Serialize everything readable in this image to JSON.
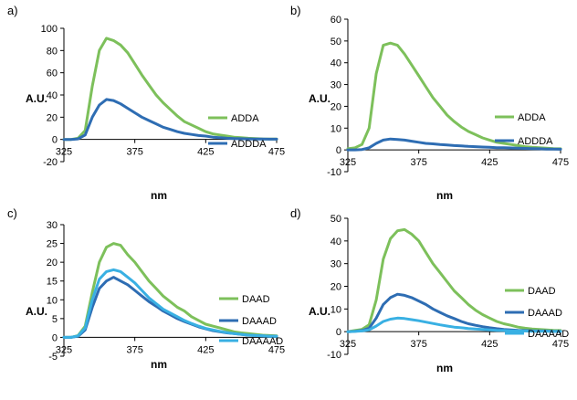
{
  "chart_data": [
    {
      "type": "line",
      "panel_label": "a)",
      "xlabel": "nm",
      "ylabel": "A.U.",
      "xlim": [
        325,
        475
      ],
      "ylim": [
        -20,
        100
      ],
      "xticks": [
        "325",
        "375",
        "425",
        "475"
      ],
      "yticks": [
        "-20",
        "0",
        "20",
        "40",
        "60",
        "80",
        "100"
      ],
      "grid": false,
      "legend_position": "right",
      "series": [
        {
          "name": "ADDA",
          "color": "#7dc05b",
          "x": [
            325,
            330,
            335,
            340,
            345,
            350,
            355,
            360,
            365,
            370,
            375,
            380,
            385,
            390,
            395,
            400,
            405,
            410,
            415,
            420,
            425,
            430,
            435,
            440,
            445,
            450,
            455,
            460,
            465,
            470,
            475
          ],
          "y": [
            0,
            0,
            1,
            8,
            48,
            80,
            91,
            89,
            85,
            78,
            68,
            58,
            49,
            40,
            33,
            27,
            21,
            16,
            13,
            10,
            7,
            5,
            4,
            3,
            2,
            1.5,
            1,
            0.8,
            0.5,
            0.4,
            0.3
          ]
        },
        {
          "name": "ADDDA",
          "color": "#2e6db3",
          "x": [
            325,
            330,
            335,
            340,
            345,
            350,
            355,
            360,
            365,
            370,
            375,
            380,
            385,
            390,
            395,
            400,
            405,
            410,
            415,
            420,
            425,
            430,
            435,
            440,
            445,
            450,
            455,
            460,
            465,
            470,
            475
          ],
          "y": [
            0,
            0,
            0.5,
            4,
            20,
            31,
            36,
            35,
            32,
            28,
            24,
            20,
            17,
            14,
            11,
            9,
            7,
            5.5,
            4.5,
            3.5,
            3,
            2,
            1.5,
            1,
            0.8,
            0.6,
            0.5,
            0.4,
            0.3,
            0.2,
            0.2
          ]
        }
      ]
    },
    {
      "type": "line",
      "panel_label": "b)",
      "xlabel": "nm",
      "ylabel": "A.U.",
      "xlim": [
        325,
        475
      ],
      "ylim": [
        -10,
        60
      ],
      "xticks": [
        "325",
        "375",
        "425",
        "475"
      ],
      "yticks": [
        "-10",
        "0",
        "10",
        "20",
        "30",
        "40",
        "50",
        "60"
      ],
      "grid": false,
      "legend_position": "right",
      "series": [
        {
          "name": "ADDA",
          "color": "#7dc05b",
          "x": [
            325,
            330,
            335,
            340,
            345,
            350,
            355,
            360,
            365,
            370,
            375,
            380,
            385,
            390,
            395,
            400,
            405,
            410,
            415,
            420,
            425,
            430,
            435,
            440,
            445,
            450,
            455,
            460,
            465,
            470,
            475
          ],
          "y": [
            0.5,
            1,
            2.5,
            10,
            35,
            48,
            49,
            48,
            44,
            39,
            34,
            29,
            24,
            20,
            16,
            13,
            10.5,
            8.5,
            7,
            5.5,
            4.5,
            3.5,
            3,
            2.5,
            2,
            1.5,
            1.2,
            1,
            0.8,
            0.6,
            0.5
          ]
        },
        {
          "name": "ADDDA",
          "color": "#2e6db3",
          "x": [
            325,
            330,
            335,
            340,
            345,
            350,
            355,
            360,
            365,
            370,
            375,
            380,
            385,
            390,
            395,
            400,
            405,
            410,
            415,
            420,
            425,
            430,
            435,
            440,
            445,
            450,
            455,
            460,
            465,
            470,
            475
          ],
          "y": [
            0,
            0,
            0.2,
            1,
            3,
            4.5,
            5,
            4.8,
            4.5,
            4,
            3.5,
            3,
            2.8,
            2.5,
            2.3,
            2,
            1.8,
            1.6,
            1.5,
            1.3,
            1.2,
            1,
            1,
            0.9,
            0.8,
            0.7,
            0.6,
            0.5,
            0.4,
            0.4,
            0.3
          ]
        }
      ]
    },
    {
      "type": "line",
      "panel_label": "c)",
      "xlabel": "nm",
      "ylabel": "A.U.",
      "xlim": [
        325,
        475
      ],
      "ylim": [
        -5,
        30
      ],
      "xticks": [
        "325",
        "375",
        "425",
        "475"
      ],
      "yticks": [
        "-5",
        "0",
        "5",
        "10",
        "15",
        "20",
        "25",
        "30"
      ],
      "grid": false,
      "legend_position": "right",
      "series": [
        {
          "name": "DAAD",
          "color": "#7dc05b",
          "x": [
            325,
            330,
            335,
            340,
            345,
            350,
            355,
            360,
            365,
            370,
            375,
            380,
            385,
            390,
            395,
            400,
            405,
            410,
            415,
            420,
            425,
            430,
            435,
            440,
            445,
            450,
            455,
            460,
            465,
            470,
            475
          ],
          "y": [
            0,
            0,
            0.5,
            3,
            12,
            20,
            24,
            25,
            24.5,
            22,
            20,
            17.5,
            15,
            13,
            11,
            9.5,
            8,
            7,
            5.5,
            4.5,
            3.5,
            3,
            2.5,
            2,
            1.5,
            1.2,
            1,
            0.8,
            0.6,
            0.5,
            0.4
          ]
        },
        {
          "name": "DAAAD",
          "color": "#2e6db3",
          "x": [
            325,
            330,
            335,
            340,
            345,
            350,
            355,
            360,
            365,
            370,
            375,
            380,
            385,
            390,
            395,
            400,
            405,
            410,
            415,
            420,
            425,
            430,
            435,
            440,
            445,
            450,
            455,
            460,
            465,
            470,
            475
          ],
          "y": [
            0,
            0,
            0.3,
            2,
            8,
            13,
            15,
            16,
            15,
            14,
            12.5,
            11,
            9.5,
            8.3,
            7,
            6,
            5,
            4.2,
            3.5,
            2.8,
            2.3,
            1.8,
            1.5,
            1.2,
            1,
            0.8,
            0.6,
            0.5,
            0.4,
            0.3,
            0.3
          ]
        },
        {
          "name": "DAAAAD",
          "color": "#39b0e3",
          "x": [
            325,
            330,
            335,
            340,
            345,
            350,
            355,
            360,
            365,
            370,
            375,
            380,
            385,
            390,
            395,
            400,
            405,
            410,
            415,
            420,
            425,
            430,
            435,
            440,
            445,
            450,
            455,
            460,
            465,
            470,
            475
          ],
          "y": [
            0,
            0,
            0.4,
            2.5,
            10,
            15.5,
            17.5,
            18,
            17.5,
            16,
            14.5,
            12.5,
            10.5,
            9,
            7.5,
            6.5,
            5.5,
            4.5,
            3.7,
            3,
            2.4,
            2,
            1.6,
            1.3,
            1,
            0.8,
            0.6,
            0.5,
            0.4,
            0.3,
            0.3
          ]
        }
      ]
    },
    {
      "type": "line",
      "panel_label": "d)",
      "xlabel": "nm",
      "ylabel": "A.U.",
      "xlim": [
        325,
        475
      ],
      "ylim": [
        -10,
        50
      ],
      "xticks": [
        "325",
        "375",
        "425",
        "475"
      ],
      "yticks": [
        "-10",
        "0",
        "10",
        "20",
        "30",
        "40",
        "50"
      ],
      "grid": false,
      "legend_position": "right",
      "series": [
        {
          "name": "DAAD",
          "color": "#7dc05b",
          "x": [
            325,
            330,
            335,
            340,
            345,
            350,
            355,
            360,
            365,
            370,
            375,
            380,
            385,
            390,
            395,
            400,
            405,
            410,
            415,
            420,
            425,
            430,
            435,
            440,
            445,
            450,
            455,
            460,
            465,
            470,
            475
          ],
          "y": [
            0,
            0.5,
            1,
            3,
            14,
            32,
            41,
            44.5,
            45,
            43,
            40,
            35,
            30,
            26,
            22,
            18,
            15,
            12,
            9.5,
            7.5,
            6,
            4.5,
            3.5,
            2.8,
            2,
            1.5,
            1.2,
            1,
            0.8,
            0.6,
            0.5
          ]
        },
        {
          "name": "DAAAD",
          "color": "#2e6db3",
          "x": [
            325,
            330,
            335,
            340,
            345,
            350,
            355,
            360,
            365,
            370,
            375,
            380,
            385,
            390,
            395,
            400,
            405,
            410,
            415,
            420,
            425,
            430,
            435,
            440,
            445,
            450,
            455,
            460,
            465,
            470,
            475
          ],
          "y": [
            0,
            0.2,
            0.5,
            1.5,
            6,
            12,
            15,
            16.5,
            16,
            15,
            13.5,
            12,
            10,
            8.5,
            7,
            5.8,
            4.5,
            3.5,
            2.8,
            2.2,
            1.7,
            1.3,
            1,
            0.8,
            0.6,
            0.5,
            0.4,
            0.3,
            0.3,
            0.2,
            0.2
          ]
        },
        {
          "name": "DAAAAD",
          "color": "#39b0e3",
          "x": [
            325,
            330,
            335,
            340,
            345,
            350,
            355,
            360,
            365,
            370,
            375,
            380,
            385,
            390,
            395,
            400,
            405,
            410,
            415,
            420,
            425,
            430,
            435,
            440,
            445,
            450,
            455,
            460,
            465,
            470,
            475
          ],
          "y": [
            0,
            0.1,
            0.3,
            0.8,
            2.5,
            4.5,
            5.5,
            6,
            5.8,
            5.3,
            4.8,
            4.2,
            3.6,
            3,
            2.5,
            2,
            1.7,
            1.4,
            1.2,
            1,
            0.8,
            0.6,
            0.5,
            0.4,
            0.3,
            0.3,
            0.2,
            0.2,
            0.2,
            0.1,
            0.1
          ]
        }
      ]
    }
  ]
}
